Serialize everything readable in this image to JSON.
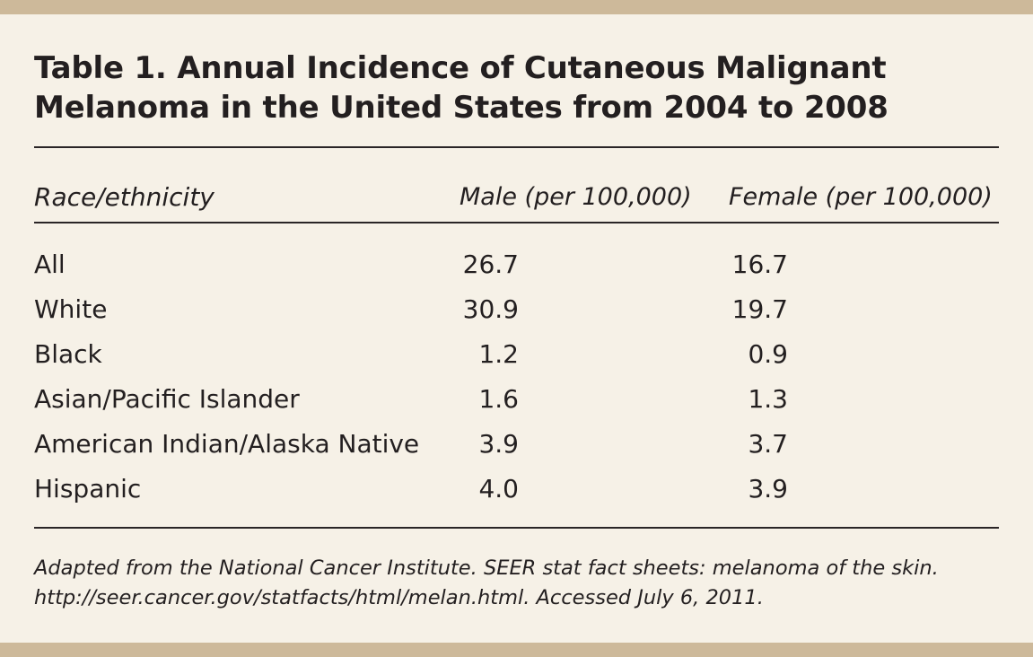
{
  "table": {
    "title_line1": "Table 1. Annual Incidence of Cutaneous Malignant",
    "title_line2": "Melanoma in the United States from 2004 to 2008",
    "headers": [
      "Race/ethnicity",
      "Male (per 100,000)",
      "Female (per 100,000)"
    ],
    "rows": [
      {
        "race": "All",
        "male": "26.7",
        "female": "16.7"
      },
      {
        "race": "White",
        "male": "30.9",
        "female": "19.7"
      },
      {
        "race": "Black",
        "male": "1.2",
        "female": "0.9"
      },
      {
        "race": "Asian/Pacific Islander",
        "male": "1.6",
        "female": "1.3"
      },
      {
        "race": "American Indian/Alaska Native",
        "male": "3.9",
        "female": "3.7"
      },
      {
        "race": "Hispanic",
        "male": "4.0",
        "female": "3.9"
      }
    ],
    "footnote_line1": "Adapted from the National Cancer Institute. SEER stat fact sheets: melanoma of the skin.",
    "footnote_line2": "http://seer.cancer.gov/statfacts/html/melan.html. Accessed July 6, 2011."
  },
  "colors": {
    "background": "#f6f1e7",
    "band": "#cdb99a",
    "text": "#231f20"
  }
}
